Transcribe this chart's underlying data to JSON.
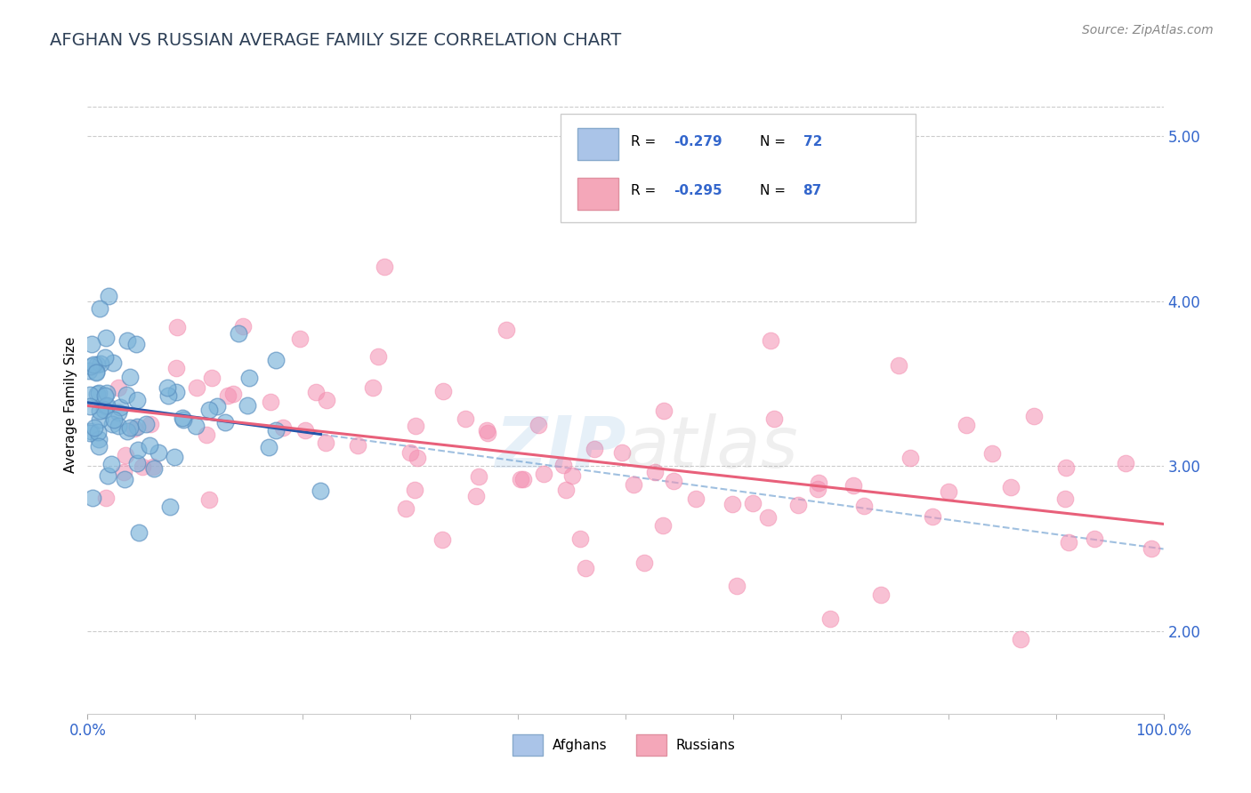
{
  "title": "AFGHAN VS RUSSIAN AVERAGE FAMILY SIZE CORRELATION CHART",
  "source_text": "Source: ZipAtlas.com",
  "ylabel": "Average Family Size",
  "xmin": 0.0,
  "xmax": 100.0,
  "ymin": 1.5,
  "ymax": 5.25,
  "yticks_right": [
    2.0,
    3.0,
    4.0,
    5.0
  ],
  "afghan_color": "#7ab3d9",
  "afghan_edge_color": "#5a8fc0",
  "russian_color": "#f48fb1",
  "russian_edge_color": "#e06090",
  "afghan_line_color": "#2255aa",
  "russian_line_color": "#e8607a",
  "dashed_color": "#a0c0e0",
  "legend_box_color": "#aac4e8",
  "legend_pink_color": "#f4a7b9",
  "watermark_zip_color": "#5b9bd5",
  "watermark_atlas_color": "#999999",
  "title_color": "#2e4057",
  "title_fontsize": 14,
  "axis_label_color": "#3366cc",
  "grid_color": "#cccccc",
  "source_color": "#888888"
}
